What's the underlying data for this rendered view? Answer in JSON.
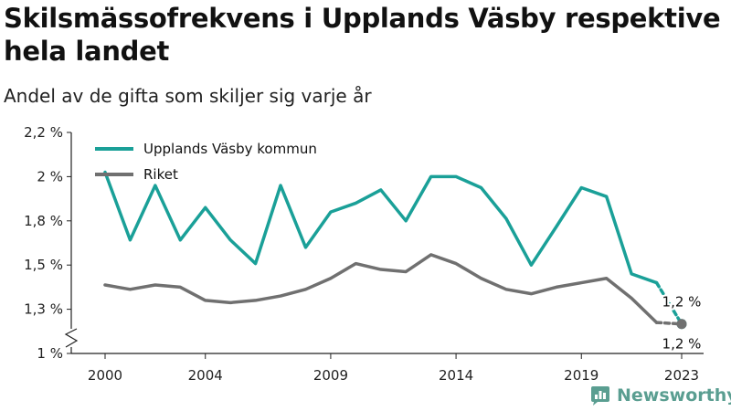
{
  "header": {
    "title": "Skilsmässofrekvens i Upplands Väsby respektive hela landet",
    "subtitle": "Andel av de gifta som skiljer sig varje år"
  },
  "brand": {
    "name": "Newsworthy",
    "icon": "newsworthy-logo-icon",
    "color": "#5a9e91"
  },
  "chart_data": {
    "type": "line",
    "title": "Skilsmässofrekvens i Upplands Väsby respektive hela landet",
    "subtitle": "Andel av de gifta som skiljer sig varje år",
    "xlabel": "",
    "ylabel": "",
    "x": [
      2000,
      2001,
      2002,
      2003,
      2004,
      2005,
      2006,
      2007,
      2008,
      2009,
      2010,
      2011,
      2012,
      2013,
      2014,
      2015,
      2016,
      2017,
      2018,
      2019,
      2020,
      2021,
      2022,
      2023
    ],
    "xticks": [
      2000,
      2004,
      2009,
      2014,
      2019,
      2023
    ],
    "xtick_labels": [
      "2000",
      "2004",
      "2009",
      "2014",
      "2019",
      "2023"
    ],
    "yticks": [
      1.0,
      1.3,
      1.5,
      1.8,
      2.0,
      2.2
    ],
    "ytick_labels": [
      "1 %",
      "1,3 %",
      "1,5 %",
      "1,8 %",
      "2 %",
      "2,2 %"
    ],
    "ylim": [
      1.0,
      2.2
    ],
    "y_axis_break": true,
    "grid": false,
    "legend_position": "top-left",
    "series": [
      {
        "name": "Upplands Väsby kommun",
        "color": "#1aa098",
        "values": [
          2.02,
          1.67,
          1.96,
          1.67,
          1.86,
          1.67,
          1.51,
          1.96,
          1.62,
          1.84,
          1.88,
          1.94,
          1.8,
          2.0,
          2.0,
          1.95,
          1.81,
          1.5,
          1.76,
          1.95,
          1.91,
          1.46,
          1.42,
          1.2
        ],
        "end_label": "1,2 %"
      },
      {
        "name": "Riket",
        "color": "#707070",
        "values": [
          1.41,
          1.39,
          1.41,
          1.4,
          1.34,
          1.33,
          1.34,
          1.36,
          1.39,
          1.44,
          1.51,
          1.48,
          1.47,
          1.57,
          1.51,
          1.44,
          1.39,
          1.37,
          1.4,
          1.42,
          1.44,
          1.35,
          1.21,
          1.2
        ],
        "end_label": "1,2 %"
      }
    ]
  }
}
